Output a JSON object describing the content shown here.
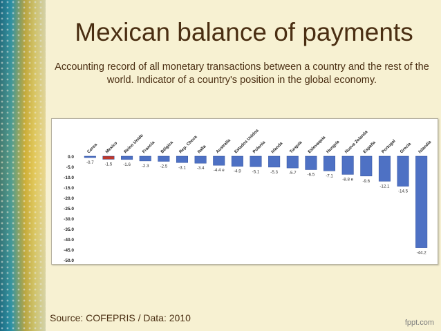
{
  "slide": {
    "title": "Mexican balance of payments",
    "subtitle": "Accounting record of all monetary transactions between a country and the rest of the world. Indicator of a country's position in the global economy.",
    "source": "Source: COFEPRIS / Data: 2010",
    "brand": "fppt.com"
  },
  "chart_data": {
    "type": "bar",
    "title": "",
    "xlabel": "",
    "ylabel": "",
    "categories": [
      "Corea",
      "Mexico",
      "Reino Unido",
      "Francia",
      "Bélgica",
      "Rep. Checa",
      "Italia",
      "Australia",
      "Estados Unidos",
      "Polonia",
      "Irlanda",
      "Turquía",
      "Eslovaquia",
      "Hungría",
      "Nueva Zelanda",
      "España",
      "Portugal",
      "Grecia",
      "Islandia"
    ],
    "values": [
      -0.7,
      -1.5,
      -1.6,
      -2.3,
      -2.5,
      -3.1,
      -3.4,
      -4.4,
      -4.9,
      -5.1,
      -5.3,
      -5.7,
      -6.5,
      -7.1,
      -8.8,
      -9.6,
      -12.1,
      -14.5,
      -44.2
    ],
    "value_labels": [
      "-0.7",
      "-1.5",
      "-1.6",
      "-2.3",
      "-2.5",
      "-3.1",
      "-3.4",
      "-4.4 e",
      "-4.9",
      "-5.1",
      "-5.3",
      "-5.7",
      "-6.5",
      "-7.1",
      "-8.8 e",
      "-9.6",
      "-12.1",
      "-14.5",
      "-44.2"
    ],
    "yticks": [
      "0.0",
      "-5.0",
      "-10.0",
      "-15.0",
      "-20.0",
      "-25.0",
      "-30.0",
      "-35.0",
      "-40.0",
      "-45.0",
      "-50.0"
    ],
    "ylim": [
      -50,
      0
    ],
    "grid": false,
    "colors": {
      "default": "#4e71c4",
      "highlight": "#c0392b"
    },
    "highlight_index": 1
  }
}
